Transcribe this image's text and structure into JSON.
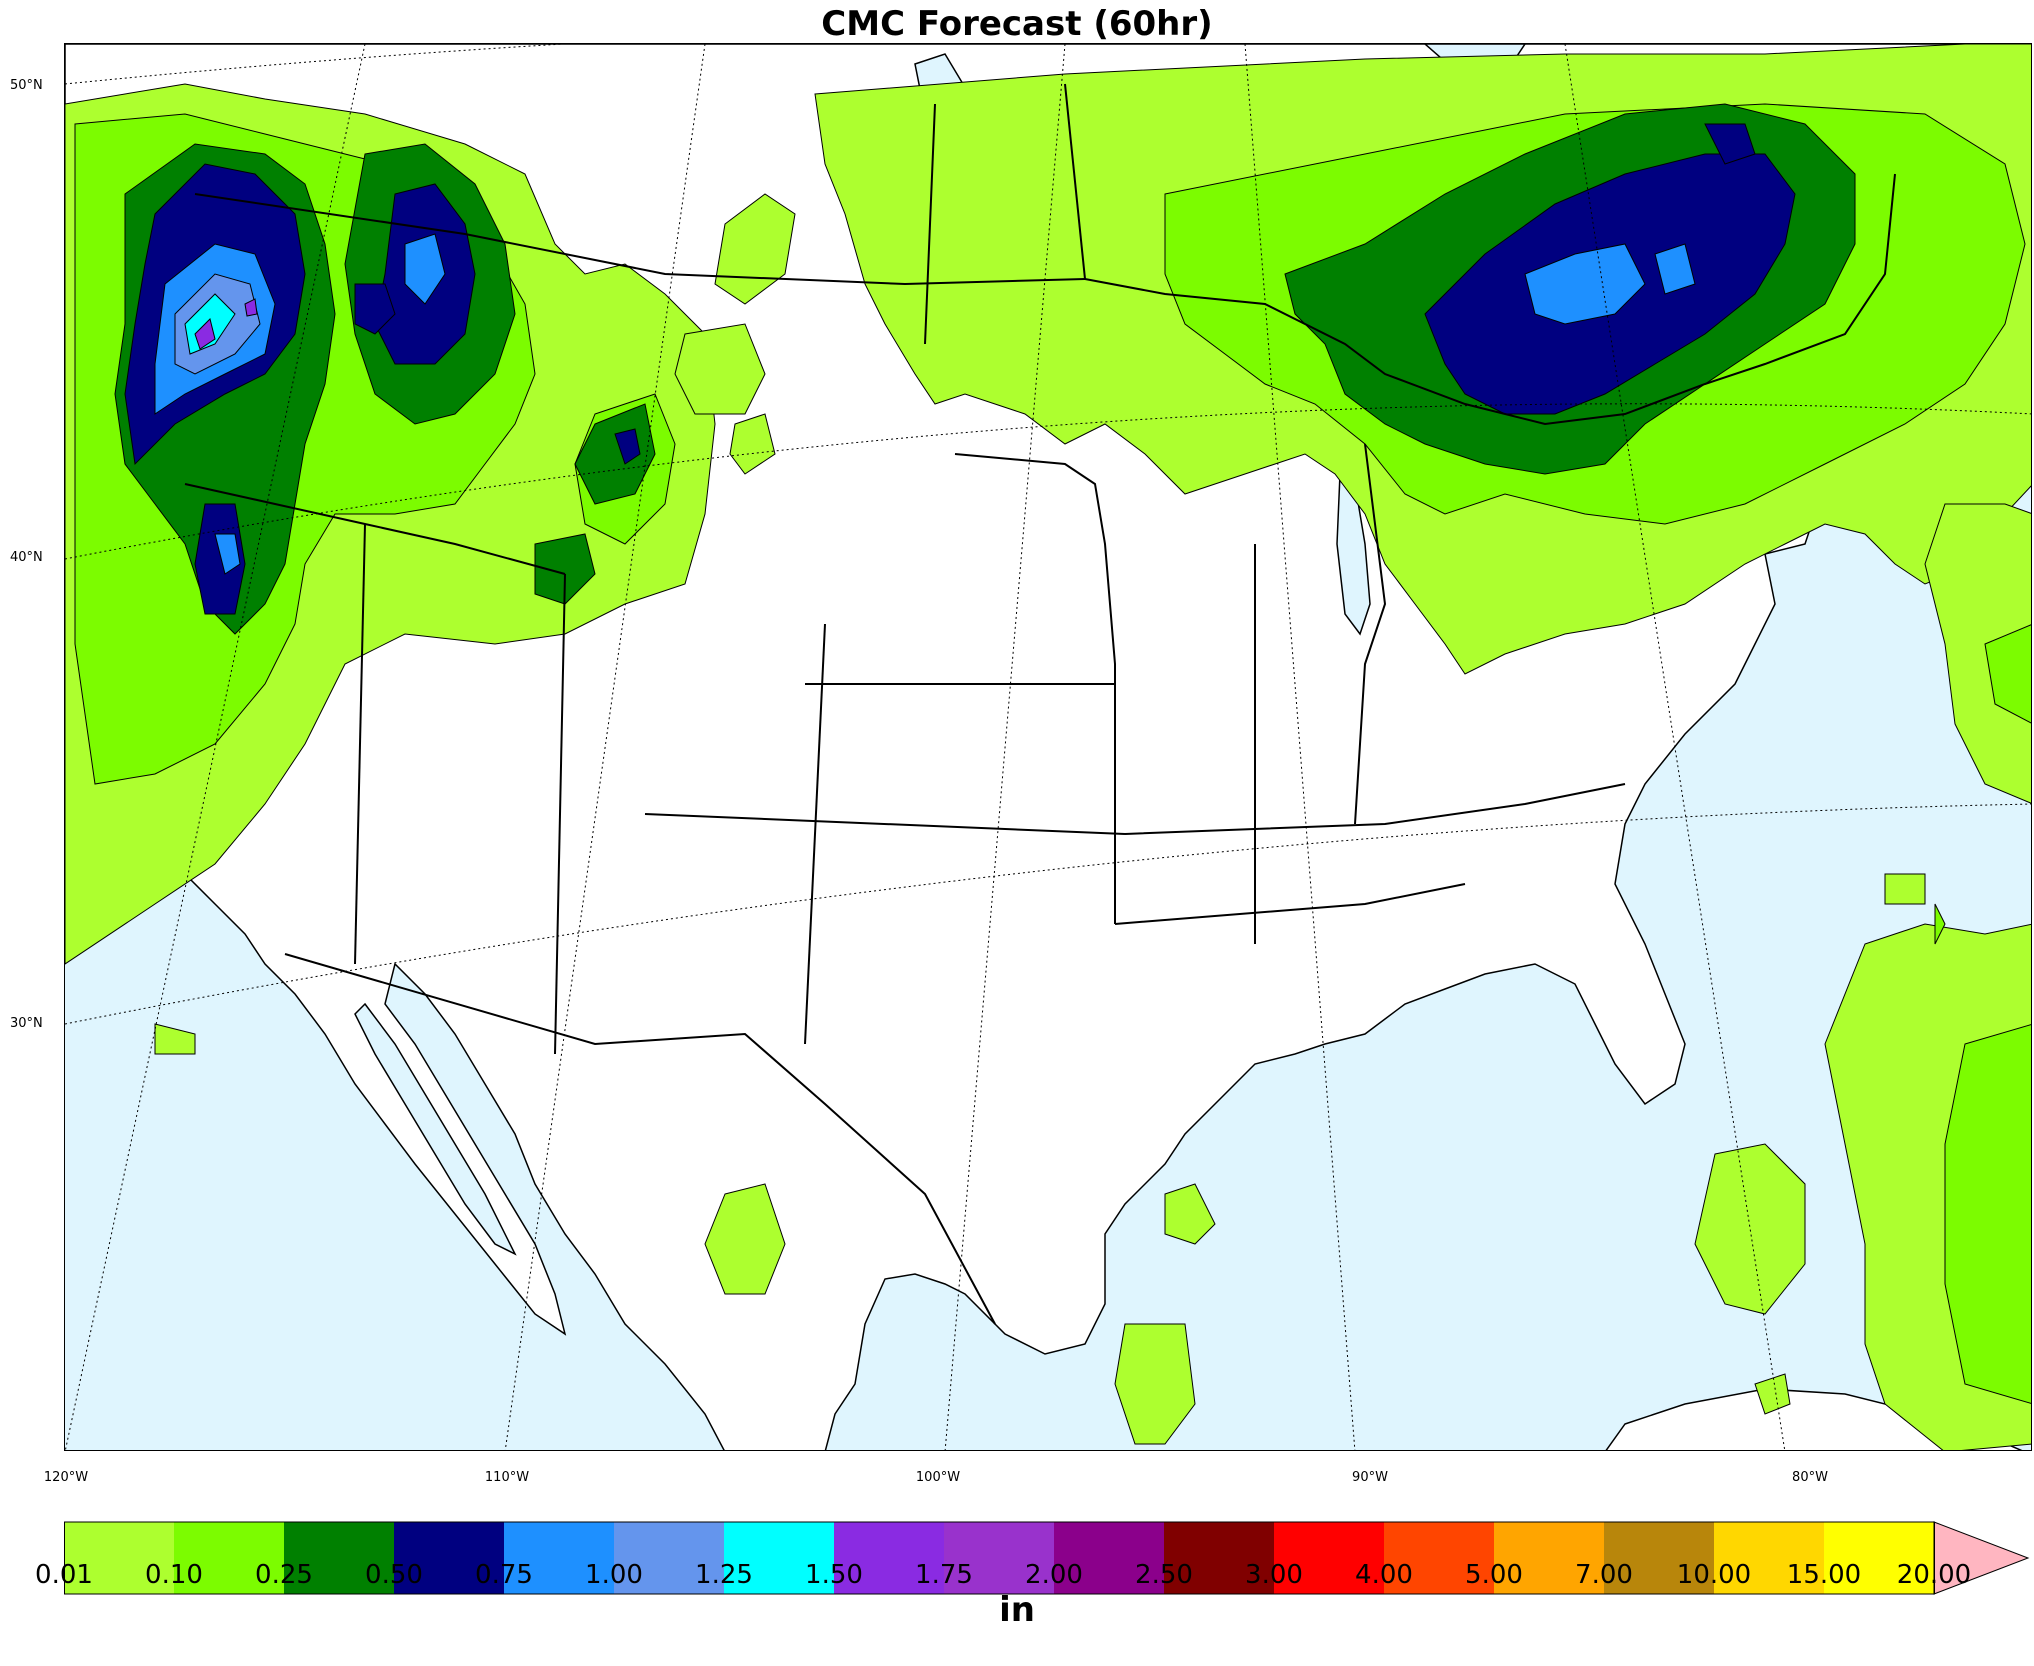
{
  "title": "CMC Forecast (60hr)",
  "units": "in",
  "colors": {
    "ocean": "#dff5fe",
    "land": "#ffffff",
    "border": "#000000"
  },
  "lat_labels": [
    "50°N",
    "40°N",
    "30°N"
  ],
  "lon_labels": [
    "120°W",
    "110°W",
    "100°W",
    "90°W",
    "80°W"
  ],
  "colorbar": {
    "colors": [
      "#adff2f",
      "#7cfc00",
      "#008000",
      "#000080",
      "#1e90ff",
      "#6495ed",
      "#00ffff",
      "#8a2be2",
      "#9932cc",
      "#8b008b",
      "#800000",
      "#ff0000",
      "#ff4500",
      "#ffa500",
      "#b8860b",
      "#ffd700",
      "#ffff00"
    ],
    "extend_color": "#ffb6c1",
    "tick_labels": [
      "0.01",
      "0.10",
      "0.25",
      "0.50",
      "0.75",
      "1.00",
      "1.25",
      "1.50",
      "1.75",
      "2.00",
      "2.50",
      "3.00",
      "4.00",
      "5.00",
      "7.00",
      "10.00",
      "15.00",
      "20.00"
    ]
  }
}
